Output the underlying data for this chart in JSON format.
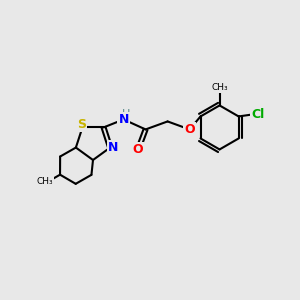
{
  "background_color": "#e8e8e8",
  "bond_color": "#000000",
  "atom_colors": {
    "S": "#c8b400",
    "N": "#0000ff",
    "O": "#ff0000",
    "Cl": "#00aa00",
    "C": "#000000",
    "H": "#5a8a8a"
  },
  "figsize": [
    3.0,
    3.0
  ],
  "dpi": 100
}
